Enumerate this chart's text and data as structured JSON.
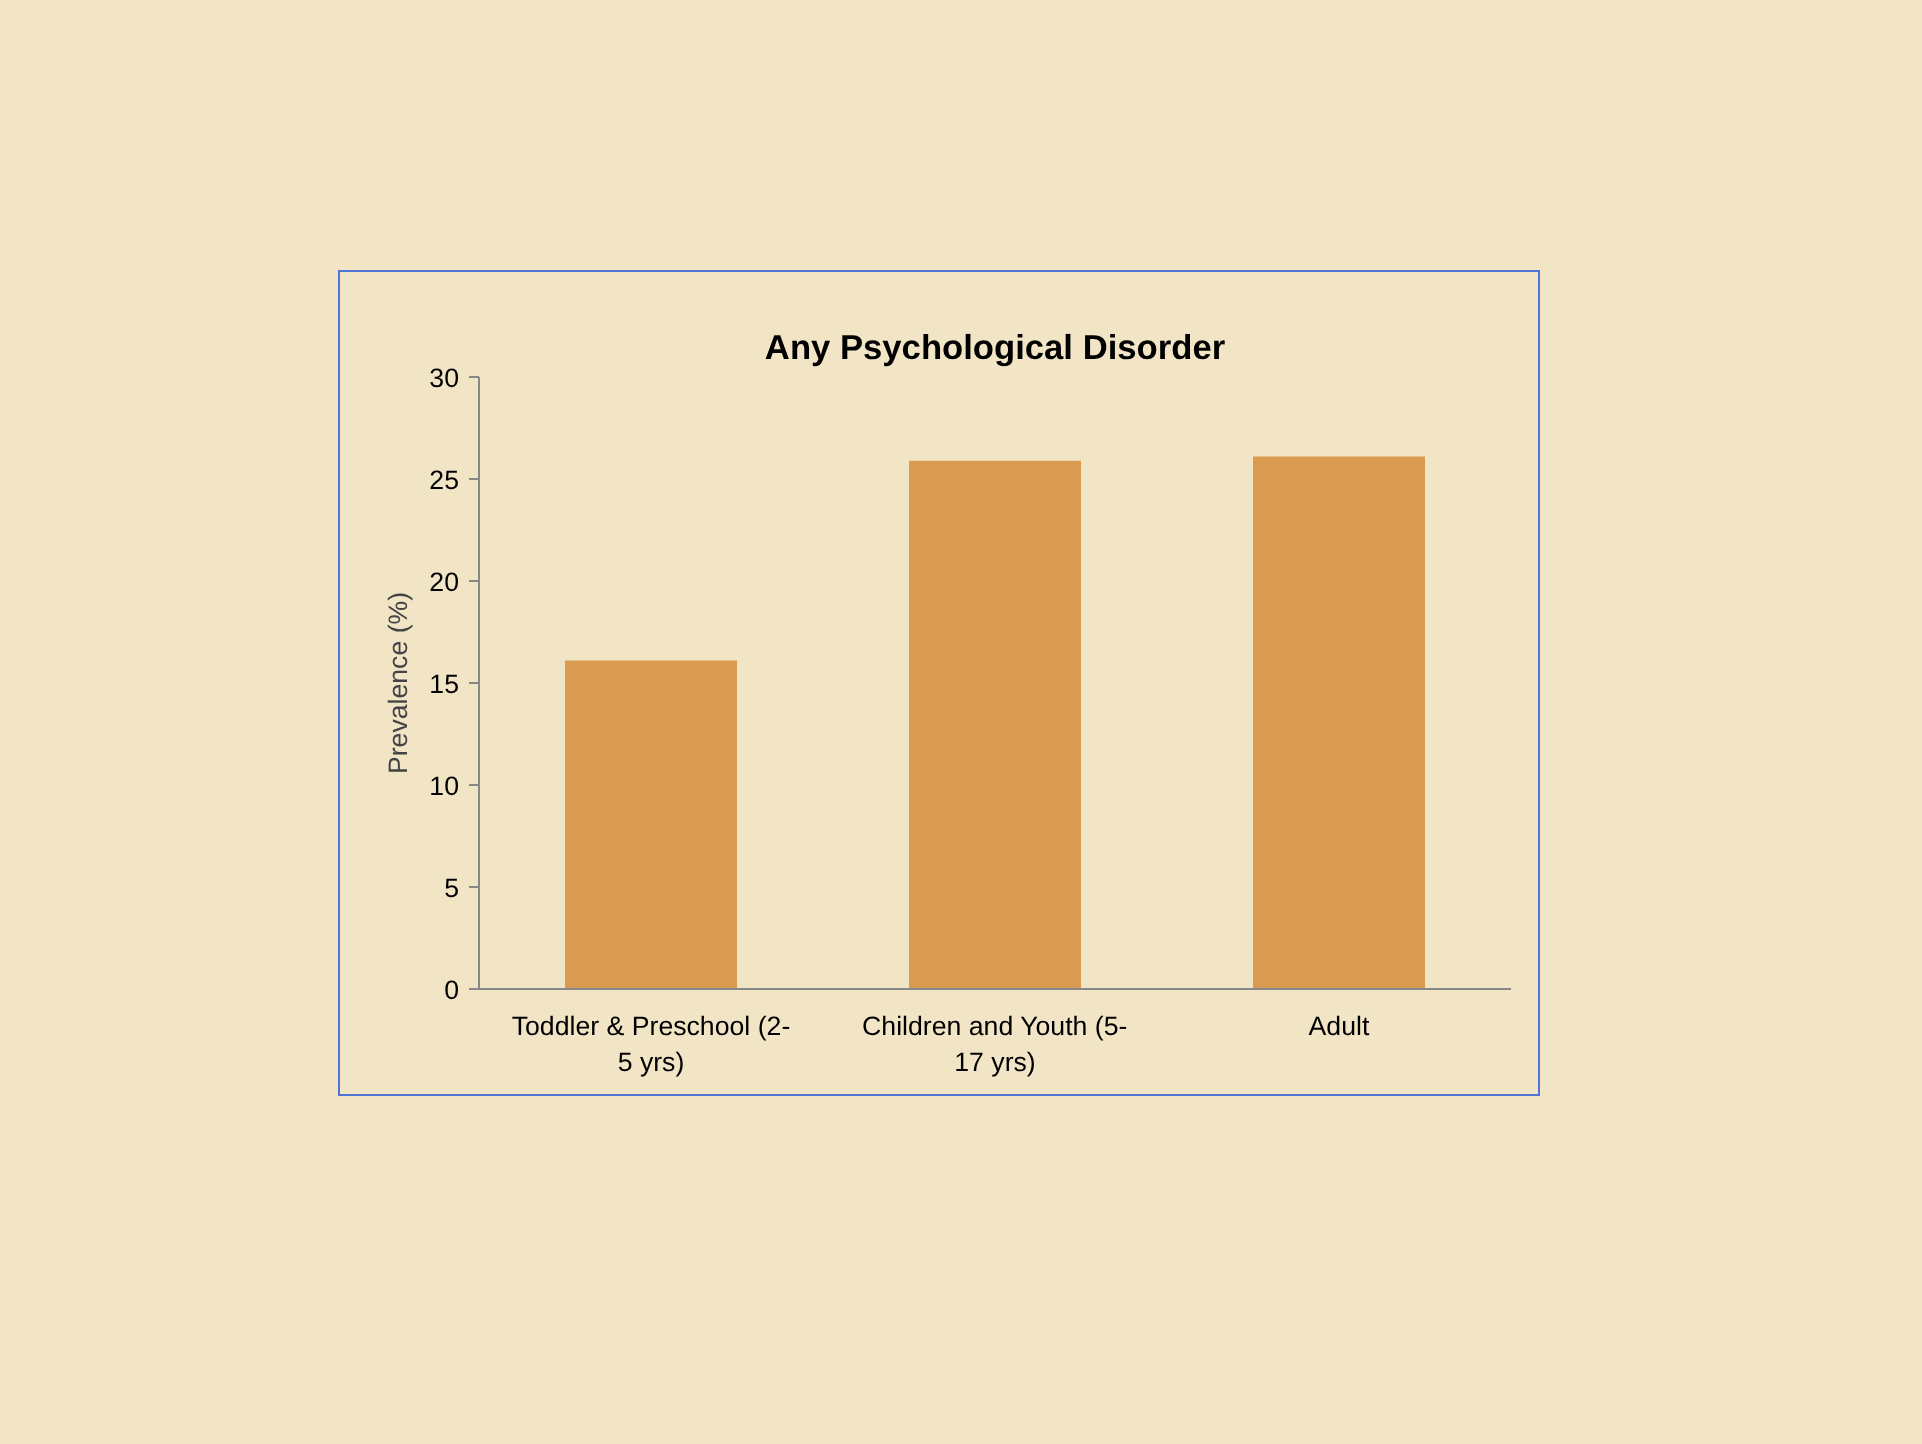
{
  "chart_data": {
    "type": "bar",
    "title": "Any Psychological Disorder",
    "ylabel": "Prevalence (%)",
    "categories": [
      "Toddler & Preschool (2-5 yrs)",
      "Children and Youth (5-17 yrs)",
      "Adult"
    ],
    "values": [
      16.1,
      25.9,
      26.1
    ],
    "color": "#d89b4f",
    "ylim": [
      0,
      30
    ],
    "yticks": [
      0,
      5,
      10,
      15,
      20,
      25,
      30
    ],
    "grid": false
  }
}
